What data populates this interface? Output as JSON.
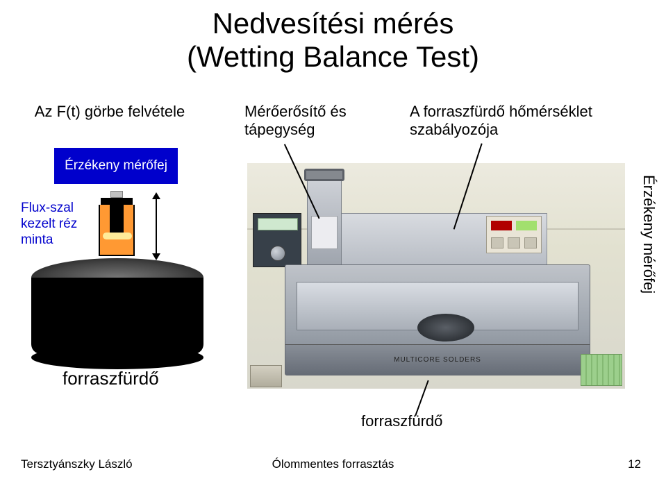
{
  "title_l1": "Nedvesítési mérés",
  "title_l2": "(Wetting Balance Test)",
  "curve_label": "Az F(t) görbe felvétele",
  "sensor_box": "Érzékeny mérőfej",
  "flux_l1": "Flux-szal",
  "flux_l2": "kezelt réz",
  "flux_l3": "minta",
  "bath_left": "forraszfürdő",
  "amp_l1": "Mérőerősítő és",
  "amp_l2": "tápegység",
  "temp_l1": "A forraszfürdő hőmérséklet",
  "temp_l2": "szabályozója",
  "sensor_vert": "Érzékeny mérőfej",
  "machine_brand": "MULTICORE SOLDERS",
  "bath_right": "forraszfürdő",
  "footer_author": "Tersztyánszky László",
  "footer_title": "Ólommentes forrasztás",
  "footer_page": "12",
  "colors": {
    "blue_box": "#0000cc",
    "flux_text": "#0000cc",
    "beaker_fill": "#ff9933",
    "background": "#ffffff",
    "text": "#000000"
  },
  "fonts": {
    "title_size_pt": 32,
    "body_size_pt": 17,
    "footer_size_pt": 13
  }
}
